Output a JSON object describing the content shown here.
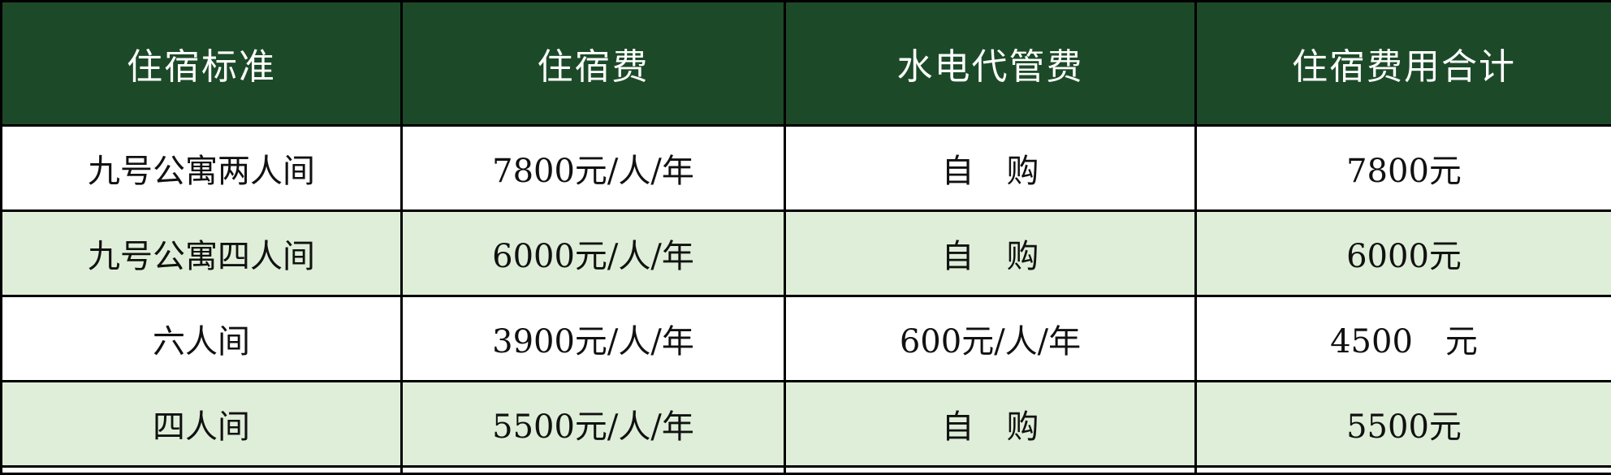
{
  "colors": {
    "header_bg": "#1c4a28",
    "alt_row_bg": "#dfeed8",
    "border": "#000000"
  },
  "table": {
    "headers": [
      "住宿标准",
      "住宿费",
      "水电代管费",
      "住宿费用合计"
    ],
    "rows": [
      [
        "九号公寓两人间",
        "7800元/人/年",
        "自　购",
        "7800元"
      ],
      [
        "九号公寓四人间",
        "6000元/人/年",
        "自　购",
        "6000元"
      ],
      [
        "六人间",
        "3900元/人/年",
        "600元/人/年",
        "4500　元"
      ],
      [
        "四人间",
        "5500元/人/年",
        "自　购",
        "5500元"
      ]
    ]
  }
}
